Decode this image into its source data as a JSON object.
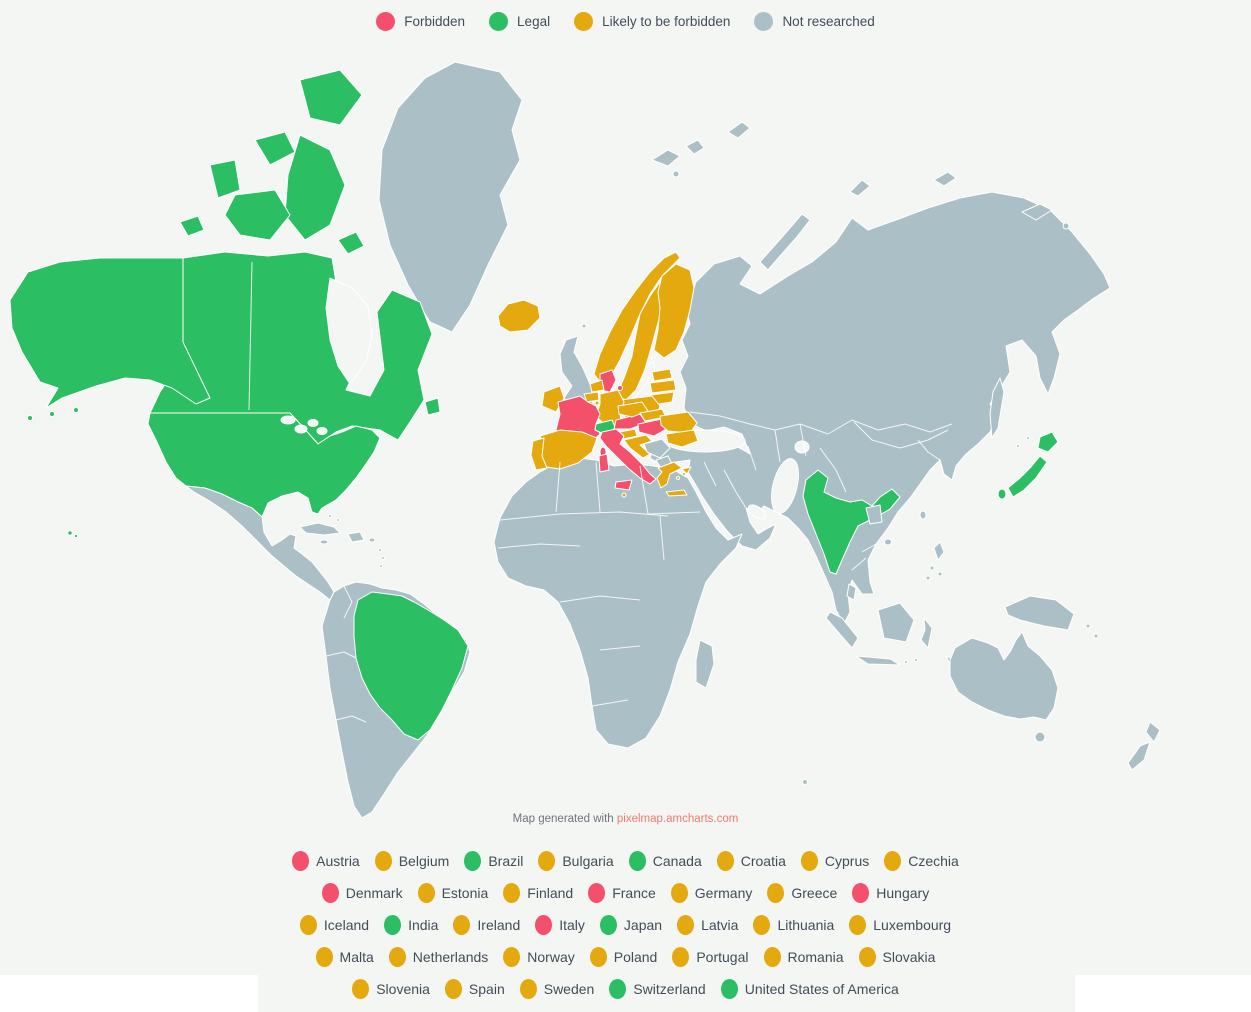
{
  "status_colors": {
    "forbidden": "#F4506B",
    "legal": "#2CBE62",
    "likely_forbidden": "#E4A90E",
    "not_researched": "#ABC0C6",
    "sea": "#F4F6F4"
  },
  "legend": {
    "items": [
      {
        "label": "Forbidden",
        "status": "forbidden"
      },
      {
        "label": "Legal",
        "status": "legal"
      },
      {
        "label": "Likely to be forbidden",
        "status": "likely_forbidden"
      },
      {
        "label": "Not researched",
        "status": "not_researched"
      }
    ]
  },
  "attribution": {
    "prefix": "Map generated with",
    "link_text": "pixelmap.amcharts.com"
  },
  "country_list": {
    "rows": [
      [
        {
          "name": "Austria",
          "status": "forbidden"
        },
        {
          "name": "Belgium",
          "status": "likely_forbidden"
        },
        {
          "name": "Brazil",
          "status": "legal"
        },
        {
          "name": "Bulgaria",
          "status": "likely_forbidden"
        },
        {
          "name": "Canada",
          "status": "legal"
        },
        {
          "name": "Croatia",
          "status": "likely_forbidden"
        },
        {
          "name": "Cyprus",
          "status": "likely_forbidden"
        },
        {
          "name": "Czechia",
          "status": "likely_forbidden"
        }
      ],
      [
        {
          "name": "Denmark",
          "status": "forbidden"
        },
        {
          "name": "Estonia",
          "status": "likely_forbidden"
        },
        {
          "name": "Finland",
          "status": "likely_forbidden"
        },
        {
          "name": "France",
          "status": "forbidden"
        },
        {
          "name": "Germany",
          "status": "likely_forbidden"
        },
        {
          "name": "Greece",
          "status": "likely_forbidden"
        },
        {
          "name": "Hungary",
          "status": "forbidden"
        }
      ],
      [
        {
          "name": "Iceland",
          "status": "likely_forbidden"
        },
        {
          "name": "India",
          "status": "legal"
        },
        {
          "name": "Ireland",
          "status": "likely_forbidden"
        },
        {
          "name": "Italy",
          "status": "forbidden"
        },
        {
          "name": "Japan",
          "status": "legal"
        },
        {
          "name": "Latvia",
          "status": "likely_forbidden"
        },
        {
          "name": "Lithuania",
          "status": "likely_forbidden"
        },
        {
          "name": "Luxembourg",
          "status": "likely_forbidden"
        }
      ],
      [
        {
          "name": "Malta",
          "status": "likely_forbidden"
        },
        {
          "name": "Netherlands",
          "status": "likely_forbidden"
        },
        {
          "name": "Norway",
          "status": "likely_forbidden"
        },
        {
          "name": "Poland",
          "status": "likely_forbidden"
        },
        {
          "name": "Portugal",
          "status": "likely_forbidden"
        },
        {
          "name": "Romania",
          "status": "likely_forbidden"
        },
        {
          "name": "Slovakia",
          "status": "likely_forbidden"
        }
      ],
      [
        {
          "name": "Slovenia",
          "status": "likely_forbidden"
        },
        {
          "name": "Spain",
          "status": "likely_forbidden"
        },
        {
          "name": "Sweden",
          "status": "likely_forbidden"
        },
        {
          "name": "Switzerland",
          "status": "legal"
        },
        {
          "name": "United States of America",
          "status": "legal"
        }
      ]
    ]
  },
  "map_regions": {
    "greenland": "not_researched",
    "canada": "legal",
    "alaska": "legal",
    "usa": "legal",
    "hawaii": "legal",
    "newfoundland": "legal",
    "mexico_central_america": "not_researched",
    "cuba": "not_researched",
    "hispaniola": "not_researched",
    "jamaica": "not_researched",
    "puerto_rico": "not_researched",
    "bahamas": "not_researched",
    "lesser_antilles": "not_researched",
    "south_america": "not_researched",
    "brazil": "legal",
    "kerguelen": "not_researched",
    "africa": "not_researched",
    "madagascar": "not_researched",
    "eurasia": "not_researched",
    "novaya_zemlya": "not_researched",
    "svalbard": "not_researched",
    "arctic_islands": "not_researched",
    "uk": "not_researched",
    "ireland": "likely_forbidden",
    "iceland": "likely_forbidden",
    "norway": "likely_forbidden",
    "sweden": "likely_forbidden",
    "finland": "likely_forbidden",
    "denmark": "forbidden",
    "estonia": "likely_forbidden",
    "latvia": "likely_forbidden",
    "lithuania": "likely_forbidden",
    "poland": "likely_forbidden",
    "germany": "likely_forbidden",
    "netherlands": "likely_forbidden",
    "belgium": "likely_forbidden",
    "luxembourg": "likely_forbidden",
    "france": "forbidden",
    "corsica": "forbidden",
    "switzerland": "legal",
    "austria": "forbidden",
    "czechia": "likely_forbidden",
    "slovakia": "likely_forbidden",
    "hungary": "forbidden",
    "slovenia": "likely_forbidden",
    "croatia": "likely_forbidden",
    "bosnia_serbia": "not_researched",
    "albania": "not_researched",
    "romania": "likely_forbidden",
    "bulgaria": "likely_forbidden",
    "greece": "likely_forbidden",
    "crete": "likely_forbidden",
    "aegean": "likely_forbidden",
    "italy": "forbidden",
    "sicily": "forbidden",
    "sardinia": "forbidden",
    "spain": "likely_forbidden",
    "portugal": "likely_forbidden",
    "malta": "likely_forbidden",
    "cyprus": "likely_forbidden",
    "india": "legal",
    "bangladesh": "not_researched",
    "sri_lanka": "not_researched",
    "japan": "legal",
    "sakhalin": "not_researched",
    "kurils": "not_researched",
    "taiwan": "not_researched",
    "hainan": "not_researched",
    "philippines": "not_researched",
    "indonesia": "not_researched",
    "new_guinea": "not_researched",
    "solomon": "not_researched",
    "australia": "not_researched",
    "tasmania": "not_researched",
    "new_zealand": "not_researched",
    "sea": "sea"
  }
}
